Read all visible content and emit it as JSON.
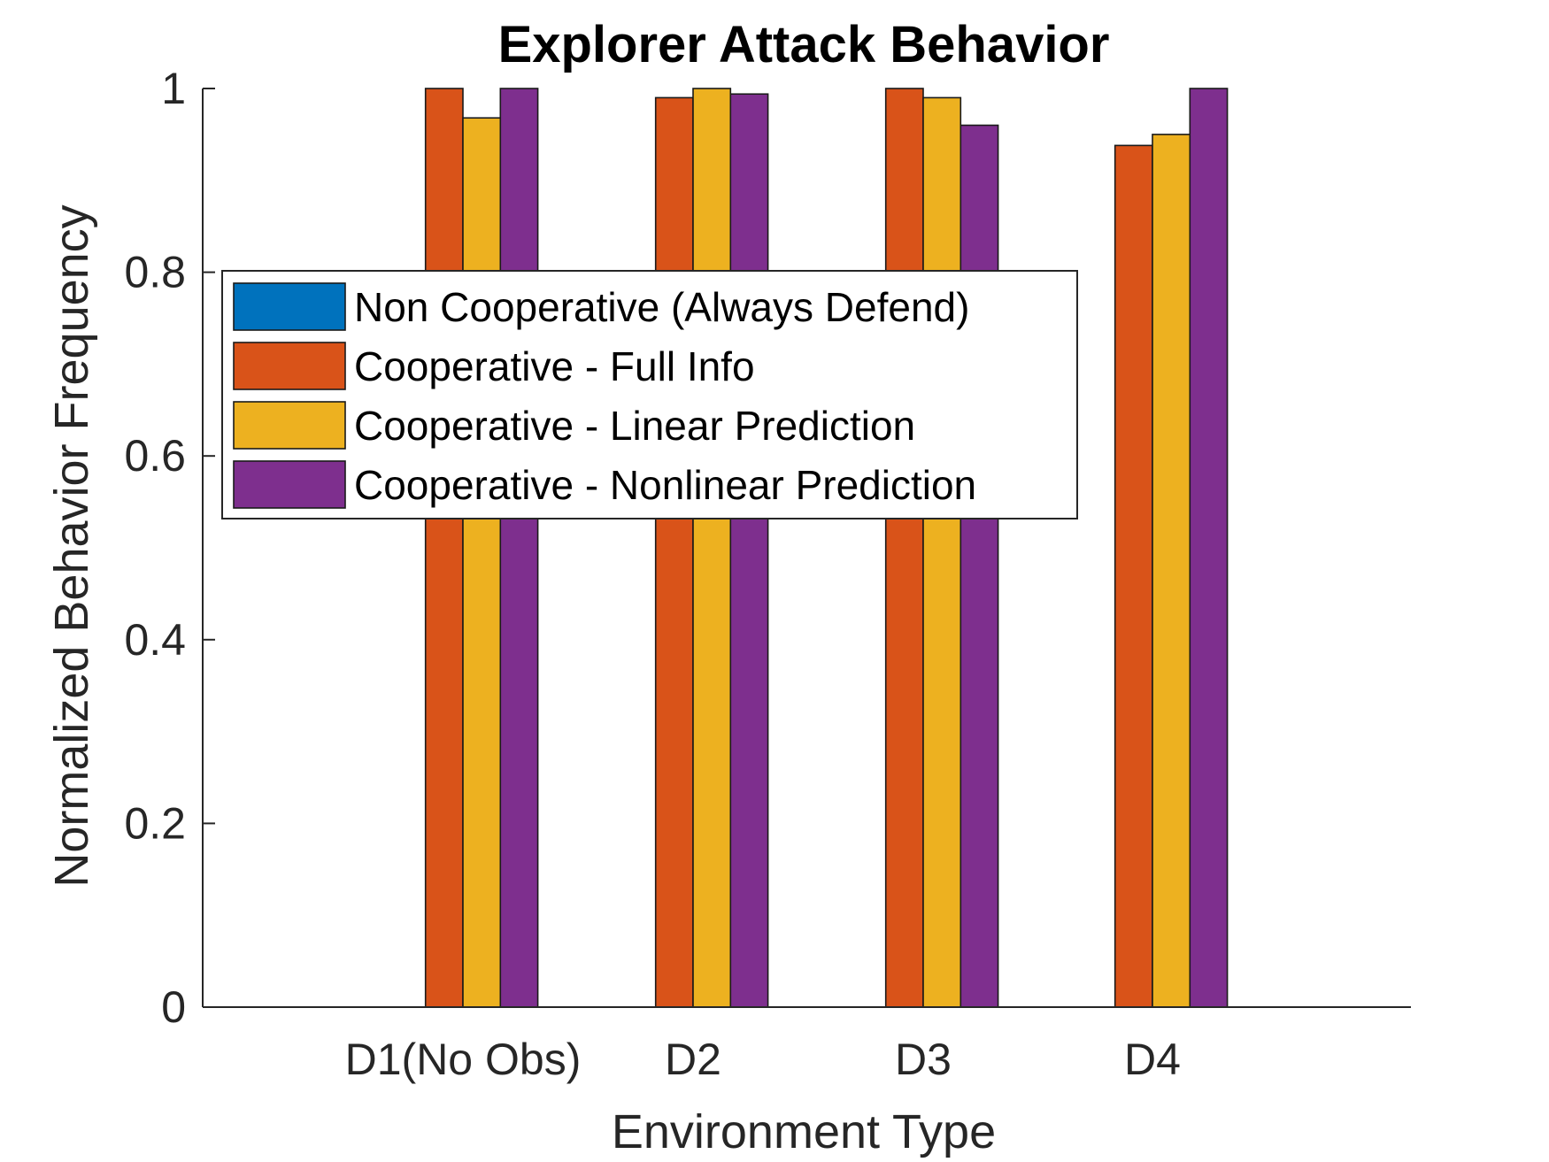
{
  "chart_data": {
    "type": "bar",
    "title": "Explorer Attack Behavior",
    "xlabel": "Environment Type",
    "ylabel": "Normalized Behavior Frequency",
    "categories": [
      "D1(No Obs)",
      "D2",
      "D3",
      "D4"
    ],
    "ylim": [
      0,
      1
    ],
    "yticks": [
      0,
      0.2,
      0.4,
      0.6,
      0.8,
      1
    ],
    "ytick_labels": [
      "0",
      "0.2",
      "0.4",
      "0.6",
      "0.8",
      "1"
    ],
    "series": [
      {
        "name": "Non Cooperative (Always Defend)",
        "color": "#0072BD",
        "values": [
          0,
          0,
          0,
          0
        ]
      },
      {
        "name": "Cooperative - Full Info",
        "color": "#D95319",
        "values": [
          1.0,
          0.99,
          1.0,
          0.938
        ]
      },
      {
        "name": "Cooperative - Linear Prediction",
        "color": "#EDB120",
        "values": [
          0.968,
          1.0,
          0.99,
          0.95
        ]
      },
      {
        "name": "Cooperative - Nonlinear Prediction",
        "color": "#7E2F8E",
        "values": [
          1.0,
          0.994,
          0.96,
          1.0
        ]
      }
    ],
    "grid": false,
    "legend_position": "upper-left"
  }
}
